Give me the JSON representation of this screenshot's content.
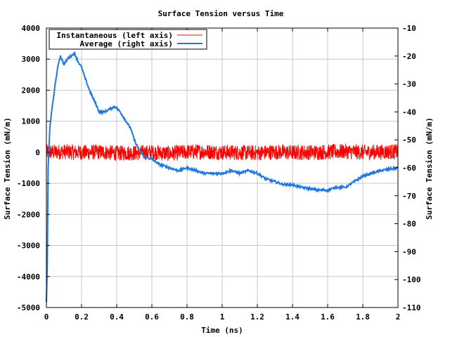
{
  "chart_data": {
    "type": "line",
    "title": "Surface Tension versus Time",
    "xlabel": "Time (ns)",
    "ylabel_left": "Surface Tension (mN/m)",
    "ylabel_right": "Surface Tension (mN/m)",
    "xlim": [
      0,
      2
    ],
    "ylim_left": [
      -5000,
      4000
    ],
    "ylim_right": [
      -110,
      -10
    ],
    "x_ticks": [
      "0",
      "0.2",
      "0.4",
      "0.6",
      "0.8",
      "1",
      "1.2",
      "1.4",
      "1.6",
      "1.8",
      "2"
    ],
    "x_tick_values": [
      0,
      0.2,
      0.4,
      0.6,
      0.8,
      1.0,
      1.2,
      1.4,
      1.6,
      1.8,
      2.0
    ],
    "y_left_ticks": [
      "4000",
      "3000",
      "2000",
      "1000",
      "0",
      "-1000",
      "-2000",
      "-3000",
      "-4000",
      "-5000"
    ],
    "y_left_tick_values": [
      4000,
      3000,
      2000,
      1000,
      0,
      -1000,
      -2000,
      -3000,
      -4000,
      -5000
    ],
    "y_right_ticks": [
      "-10",
      "-20",
      "-30",
      "-40",
      "-50",
      "-60",
      "-70",
      "-80",
      "-90",
      "-100",
      "-110"
    ],
    "y_right_tick_values": [
      -10,
      -20,
      -30,
      -40,
      -50,
      -60,
      -70,
      -80,
      -90,
      -100,
      -110
    ],
    "grid": true,
    "legend_position": "top-left",
    "series": [
      {
        "name": "Instantaneous (left axis)",
        "axis": "left",
        "color": "#ff0000",
        "x": [
          0.0,
          0.1,
          0.2,
          0.3,
          0.4,
          0.5,
          0.6,
          0.7,
          0.8,
          0.9,
          1.0,
          1.1,
          1.2,
          1.3,
          1.4,
          1.5,
          1.6,
          1.7,
          1.8,
          1.9,
          2.0
        ],
        "y": [
          0,
          20,
          -10,
          10,
          -30,
          -20,
          0,
          -40,
          10,
          20,
          0,
          -10,
          -20,
          10,
          -10,
          0,
          10,
          30,
          0,
          10,
          20
        ],
        "noise_amplitude": 250
      },
      {
        "name": "Average (right axis)",
        "axis": "right",
        "color": "#1f77e0",
        "x": [
          0.0,
          0.005,
          0.01,
          0.02,
          0.03,
          0.05,
          0.07,
          0.08,
          0.1,
          0.12,
          0.14,
          0.16,
          0.18,
          0.2,
          0.22,
          0.25,
          0.28,
          0.3,
          0.33,
          0.36,
          0.39,
          0.42,
          0.45,
          0.48,
          0.5,
          0.53,
          0.56,
          0.6,
          0.65,
          0.7,
          0.75,
          0.8,
          0.85,
          0.9,
          0.95,
          1.0,
          1.05,
          1.1,
          1.15,
          1.2,
          1.25,
          1.3,
          1.35,
          1.4,
          1.45,
          1.5,
          1.55,
          1.6,
          1.65,
          1.7,
          1.75,
          1.8,
          1.85,
          1.9,
          1.95,
          2.0
        ],
        "y": [
          -108,
          -95,
          -60,
          -45,
          -40,
          -30,
          -22,
          -20,
          -23,
          -21,
          -20,
          -19,
          -22,
          -24,
          -28,
          -33,
          -37,
          -40,
          -40,
          -39,
          -38,
          -40,
          -43,
          -46,
          -50,
          -54,
          -56,
          -57,
          -59,
          -60,
          -61,
          -60,
          -61,
          -62,
          -62,
          -62,
          -61,
          -62,
          -61,
          -62,
          -64,
          -65,
          -66,
          -66,
          -67,
          -67.5,
          -68,
          -68,
          -67,
          -67,
          -65,
          -63,
          -62,
          -61,
          -60.5,
          -60
        ]
      }
    ]
  }
}
